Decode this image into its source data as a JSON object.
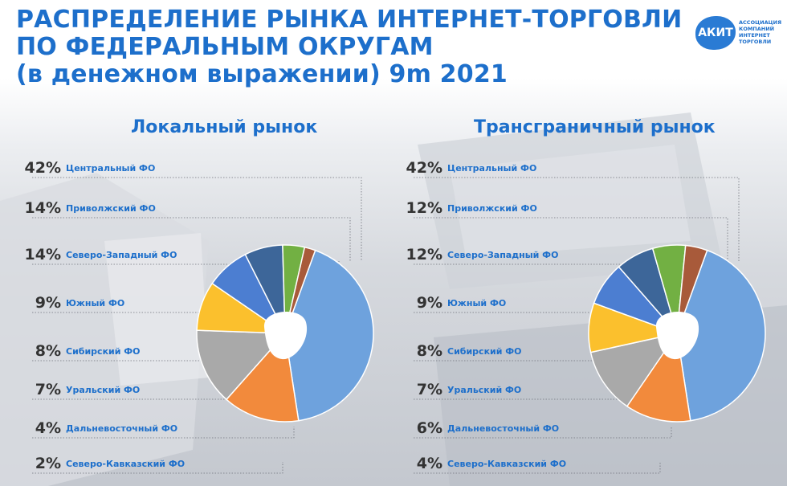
{
  "header": {
    "title_lines": [
      "РАСПРЕДЕЛЕНИЕ РЫНКА ИНТЕРНЕТ-ТОРГОВЛИ",
      "ПО ФЕДЕРАЛЬНЫМ ОКРУГАМ",
      "(в денежном выражении) 9m 2021"
    ]
  },
  "logo": {
    "badge": "АКИТ",
    "text_lines": [
      "Ассоциация",
      "компаний",
      "интернет",
      "торговли"
    ]
  },
  "colors": {
    "accent": "#1d6fcb",
    "slices": [
      "#6ea2dd",
      "#f28a3c",
      "#a9a9a9",
      "#fbc02d",
      "#4c7ed1",
      "#3d6699",
      "#72b043",
      "#a85a3a"
    ]
  },
  "chart_data": [
    {
      "type": "pie",
      "title": "Локальный рынок",
      "categories": [
        "Центральный ФО",
        "Приволжский ФО",
        "Северо-Западный ФО",
        "Южный ФО",
        "Сибирский ФО",
        "Уральский ФО",
        "Дальневосточный ФО",
        "Северо-Кавказский ФО"
      ],
      "values": [
        42,
        14,
        14,
        9,
        8,
        7,
        4,
        2
      ],
      "value_labels": [
        "42%",
        "14%",
        "14%",
        "9%",
        "8%",
        "7%",
        "4%",
        "2%"
      ]
    },
    {
      "type": "pie",
      "title": "Трансграничный рынок",
      "categories": [
        "Центральный ФО",
        "Приволжский ФО",
        "Северо-Западный ФО",
        "Южный ФО",
        "Сибирский ФО",
        "Уральский ФО",
        "Дальневосточный ФО",
        "Северо-Кавказский ФО"
      ],
      "values": [
        42,
        12,
        12,
        9,
        8,
        7,
        6,
        4
      ],
      "value_labels": [
        "42%",
        "12%",
        "12%",
        "9%",
        "8%",
        "7%",
        "6%",
        "4%"
      ]
    }
  ]
}
